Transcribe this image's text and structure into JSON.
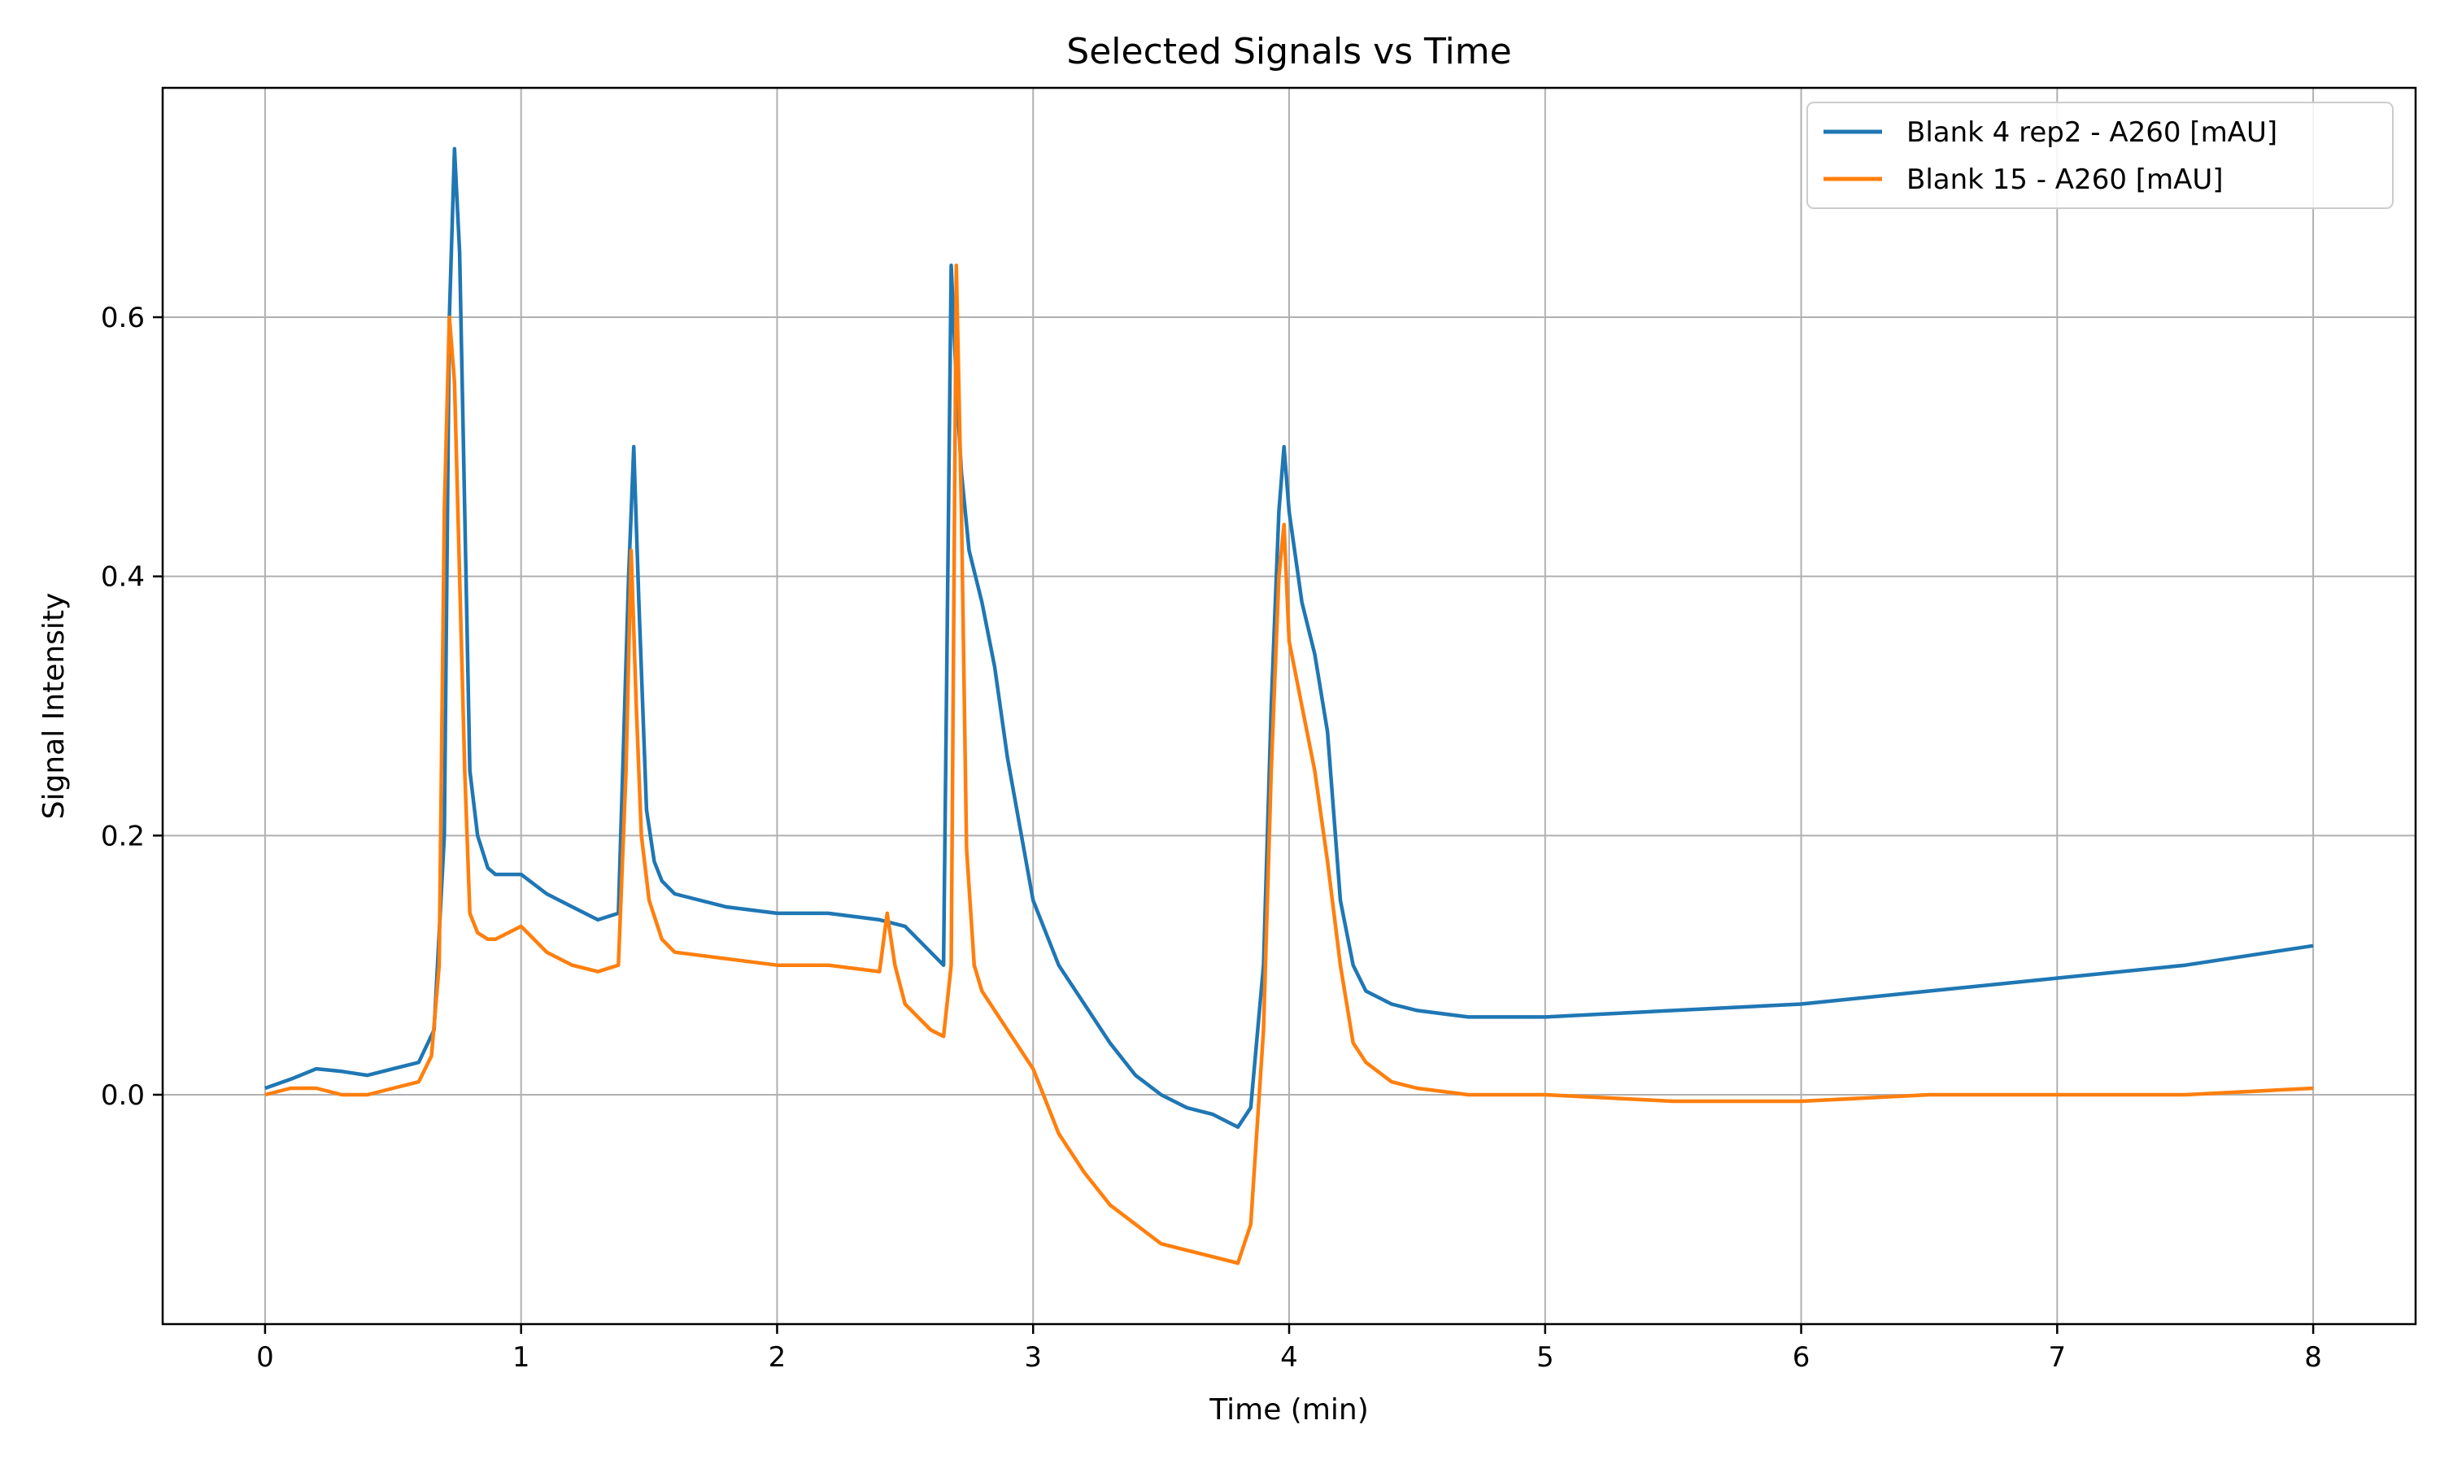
{
  "chart_data": {
    "type": "line",
    "title": "Selected Signals vs Time",
    "xlabel": "Time (min)",
    "ylabel": "Signal Intensity",
    "xlim": [
      -0.4,
      8.4
    ],
    "ylim": [
      -0.177,
      0.777
    ],
    "xticks": [
      0,
      1,
      2,
      3,
      4,
      5,
      6,
      7,
      8
    ],
    "xtick_labels": [
      "0",
      "1",
      "2",
      "3",
      "4",
      "5",
      "6",
      "7",
      "8"
    ],
    "yticks": [
      0.0,
      0.2,
      0.4,
      0.6
    ],
    "ytick_labels": [
      "0.0",
      "0.2",
      "0.4",
      "0.6"
    ],
    "grid": true,
    "legend_position": "top-right",
    "series": [
      {
        "name": "Blank  4 rep2 - A260 [mAU]",
        "color": "#1f77b4",
        "x": [
          0,
          0.1,
          0.2,
          0.3,
          0.4,
          0.5,
          0.6,
          0.66,
          0.7,
          0.72,
          0.74,
          0.76,
          0.78,
          0.8,
          0.83,
          0.87,
          0.9,
          1.0,
          1.1,
          1.2,
          1.3,
          1.38,
          1.42,
          1.44,
          1.46,
          1.49,
          1.52,
          1.55,
          1.6,
          1.8,
          2.0,
          2.2,
          2.4,
          2.5,
          2.6,
          2.65,
          2.68,
          2.7,
          2.72,
          2.75,
          2.8,
          2.85,
          2.9,
          3.0,
          3.1,
          3.2,
          3.3,
          3.4,
          3.5,
          3.6,
          3.7,
          3.8,
          3.85,
          3.9,
          3.93,
          3.96,
          3.98,
          4.0,
          4.05,
          4.1,
          4.15,
          4.2,
          4.25,
          4.3,
          4.4,
          4.5,
          4.7,
          5.0,
          5.5,
          6.0,
          6.5,
          7.0,
          7.5,
          8.0
        ],
        "y": [
          0.005,
          0.012,
          0.02,
          0.018,
          0.015,
          0.02,
          0.025,
          0.05,
          0.2,
          0.6,
          0.73,
          0.65,
          0.45,
          0.25,
          0.2,
          0.175,
          0.17,
          0.17,
          0.155,
          0.145,
          0.135,
          0.14,
          0.4,
          0.5,
          0.38,
          0.22,
          0.18,
          0.165,
          0.155,
          0.145,
          0.14,
          0.14,
          0.135,
          0.13,
          0.11,
          0.1,
          0.64,
          0.55,
          0.48,
          0.42,
          0.38,
          0.33,
          0.26,
          0.15,
          0.1,
          0.07,
          0.04,
          0.015,
          0.0,
          -0.01,
          -0.015,
          -0.025,
          -0.01,
          0.1,
          0.3,
          0.45,
          0.5,
          0.45,
          0.38,
          0.34,
          0.28,
          0.15,
          0.1,
          0.08,
          0.07,
          0.065,
          0.06,
          0.06,
          0.065,
          0.07,
          0.08,
          0.09,
          0.1,
          0.115
        ]
      },
      {
        "name": "Blank  15 - A260 [mAU]",
        "color": "#ff7f0e",
        "x": [
          0,
          0.1,
          0.2,
          0.3,
          0.4,
          0.5,
          0.6,
          0.65,
          0.68,
          0.7,
          0.72,
          0.74,
          0.76,
          0.78,
          0.8,
          0.83,
          0.87,
          0.9,
          1.0,
          1.1,
          1.2,
          1.3,
          1.38,
          1.41,
          1.43,
          1.45,
          1.47,
          1.5,
          1.55,
          1.6,
          1.8,
          2.0,
          2.2,
          2.4,
          2.43,
          2.46,
          2.5,
          2.55,
          2.6,
          2.65,
          2.68,
          2.7,
          2.72,
          2.74,
          2.77,
          2.8,
          2.85,
          2.9,
          3.0,
          3.1,
          3.2,
          3.3,
          3.4,
          3.5,
          3.6,
          3.7,
          3.8,
          3.85,
          3.9,
          3.93,
          3.96,
          3.98,
          4.0,
          4.05,
          4.1,
          4.15,
          4.2,
          4.25,
          4.3,
          4.4,
          4.5,
          4.7,
          5.0,
          5.5,
          6.0,
          6.5,
          7.0,
          7.5,
          8.0
        ],
        "y": [
          0.0,
          0.005,
          0.005,
          0.0,
          0.0,
          0.005,
          0.01,
          0.03,
          0.1,
          0.45,
          0.6,
          0.55,
          0.4,
          0.25,
          0.14,
          0.125,
          0.12,
          0.12,
          0.13,
          0.11,
          0.1,
          0.095,
          0.1,
          0.25,
          0.42,
          0.3,
          0.2,
          0.15,
          0.12,
          0.11,
          0.105,
          0.1,
          0.1,
          0.095,
          0.14,
          0.1,
          0.07,
          0.06,
          0.05,
          0.045,
          0.1,
          0.64,
          0.45,
          0.19,
          0.1,
          0.08,
          0.065,
          0.05,
          0.02,
          -0.03,
          -0.06,
          -0.085,
          -0.1,
          -0.115,
          -0.12,
          -0.125,
          -0.13,
          -0.1,
          0.05,
          0.25,
          0.4,
          0.44,
          0.35,
          0.3,
          0.25,
          0.18,
          0.1,
          0.04,
          0.025,
          0.01,
          0.005,
          0.0,
          0.0,
          -0.005,
          -0.005,
          0.0,
          0.0,
          0.0,
          0.005
        ]
      }
    ]
  }
}
